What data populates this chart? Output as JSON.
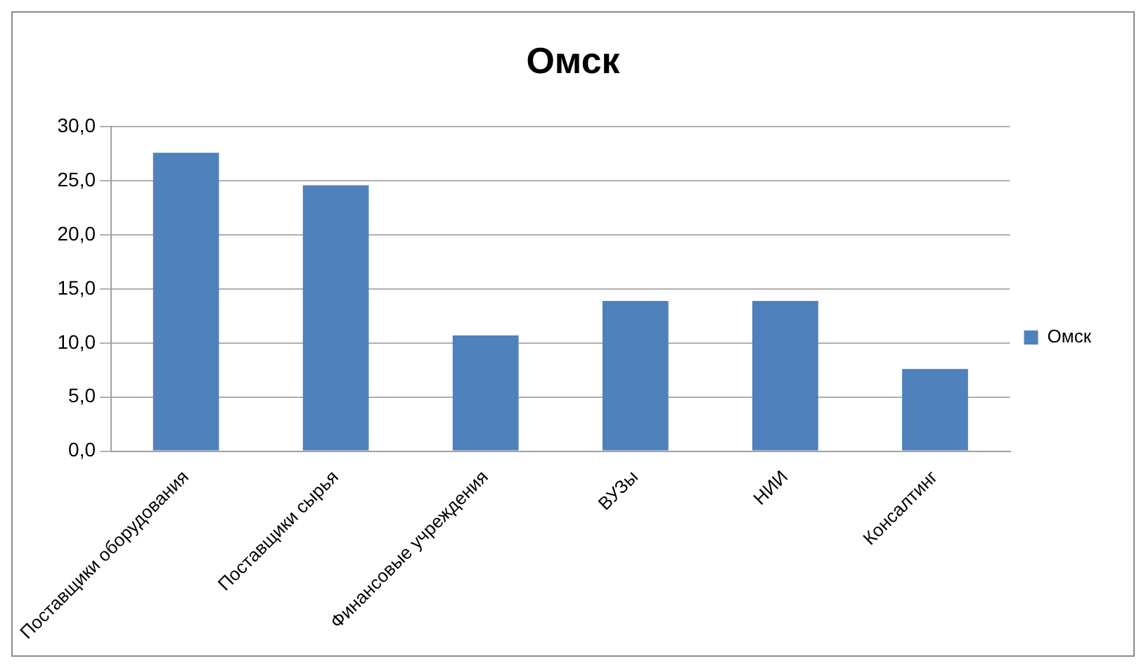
{
  "chart_data": {
    "type": "bar",
    "title": "Омск",
    "categories": [
      "Поставщики оборудования",
      "Поставщики сырья",
      "Финансовые учреждения",
      "ВУЗы",
      "НИИ",
      "Консалтинг"
    ],
    "series": [
      {
        "name": "Омск",
        "color": "#4f81bd",
        "values": [
          27.6,
          24.6,
          10.7,
          13.9,
          13.9,
          7.6
        ]
      }
    ],
    "ylim": [
      0,
      30
    ],
    "yticks": [
      {
        "value": 0,
        "label": "0,0"
      },
      {
        "value": 5,
        "label": "5,0"
      },
      {
        "value": 10,
        "label": "10,0"
      },
      {
        "value": 15,
        "label": "15,0"
      },
      {
        "value": 20,
        "label": "20,0"
      },
      {
        "value": 25,
        "label": "25,0"
      },
      {
        "value": 30,
        "label": "30,0"
      }
    ],
    "grid": "y",
    "legend": "right"
  }
}
